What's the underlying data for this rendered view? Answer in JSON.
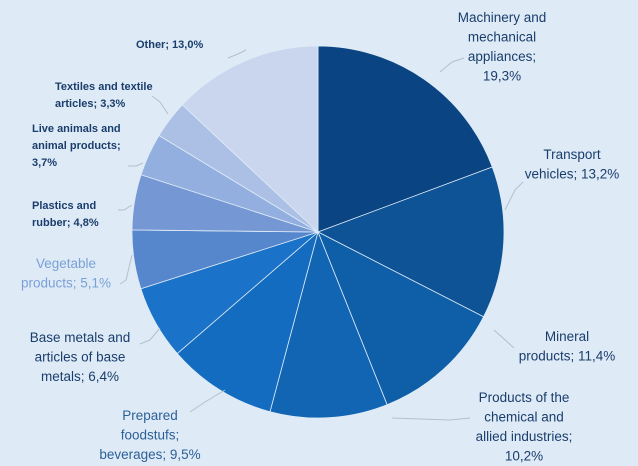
{
  "chart_data": {
    "type": "pie",
    "title": "",
    "slices": [
      {
        "label_lines": [
          "Machinery and",
          "mechanical",
          "appliances;",
          "19,3%"
        ],
        "value": 19.3,
        "color": "#0b4482",
        "label_color": "#1a3d6b"
      },
      {
        "label_lines": [
          "Transport",
          "vehicles; 13,2%"
        ],
        "value": 13.2,
        "color": "#0e5396",
        "label_color": "#1a3d6b"
      },
      {
        "label_lines": [
          "Mineral",
          "products; 11,4%"
        ],
        "value": 11.4,
        "color": "#0f5ea8",
        "label_color": "#1a3d6b"
      },
      {
        "label_lines": [
          "Products of the",
          "chemical and",
          "allied industries;",
          "10,2%"
        ],
        "value": 10.2,
        "color": "#1165b3",
        "label_color": "#1a3d6b"
      },
      {
        "label_lines": [
          "Prepared",
          "foodstufs;",
          "beverages; 9,5%"
        ],
        "value": 9.5,
        "color": "#146cc0",
        "label_color": "#2c5f96"
      },
      {
        "label_lines": [
          "Base metals and",
          "articles of base",
          "metals; 6,4%"
        ],
        "value": 6.4,
        "color": "#1a73c8",
        "label_color": "#1a3d6b"
      },
      {
        "label_lines": [
          "Vegetable",
          "products; 5,1%"
        ],
        "value": 5.1,
        "color": "#5686cc",
        "label_color": "#7ba0d6"
      },
      {
        "label_lines": [
          "Plastics and",
          "rubber; 4,8%"
        ],
        "value": 4.8,
        "color": "#7598d4",
        "label_color": "#1a3d6b"
      },
      {
        "label_lines": [
          "Live animals and",
          "animal products;",
          "3,7%"
        ],
        "value": 3.7,
        "color": "#93afdf",
        "label_color": "#1a3d6b"
      },
      {
        "label_lines": [
          "Textiles and textile",
          "articles; 3,3%"
        ],
        "value": 3.3,
        "color": "#acc0e6",
        "label_color": "#1a3d6b"
      },
      {
        "label_lines": [
          "Other; 13,0%"
        ],
        "value": 13.0,
        "color": "#cad6ee",
        "label_color": "#1a3d6b"
      }
    ]
  }
}
